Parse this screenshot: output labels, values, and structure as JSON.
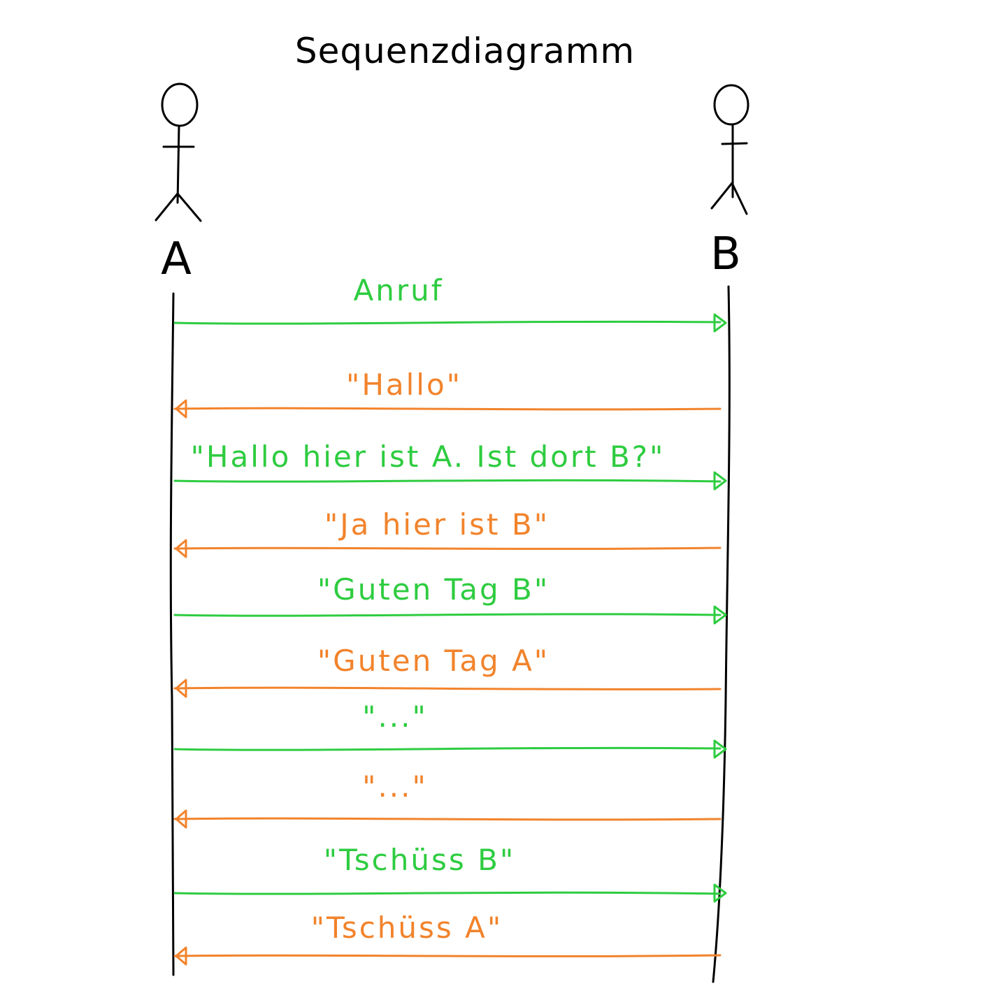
{
  "title": "Sequenzdiagramm",
  "actors": {
    "a": {
      "label": "A"
    },
    "b": {
      "label": "B"
    }
  },
  "colors": {
    "ink": "#000000",
    "green": "#2ecc40",
    "orange": "#f2832b"
  },
  "messages": [
    {
      "label": "Anruf",
      "from": "A",
      "to": "B",
      "color": "green"
    },
    {
      "label": "\"Hallo\"",
      "from": "B",
      "to": "A",
      "color": "orange"
    },
    {
      "label": "\"Hallo hier ist A. Ist dort B?\"",
      "from": "A",
      "to": "B",
      "color": "green"
    },
    {
      "label": "\"Ja hier ist B\"",
      "from": "B",
      "to": "A",
      "color": "orange"
    },
    {
      "label": "\"Guten Tag B\"",
      "from": "A",
      "to": "B",
      "color": "green"
    },
    {
      "label": "\"Guten Tag A\"",
      "from": "B",
      "to": "A",
      "color": "orange"
    },
    {
      "label": "\"...\"",
      "from": "A",
      "to": "B",
      "color": "green"
    },
    {
      "label": "\"...\"",
      "from": "B",
      "to": "A",
      "color": "orange"
    },
    {
      "label": "\"Tschüss B\"",
      "from": "A",
      "to": "B",
      "color": "green"
    },
    {
      "label": "\"Tschüss A\"",
      "from": "B",
      "to": "A",
      "color": "orange"
    }
  ]
}
